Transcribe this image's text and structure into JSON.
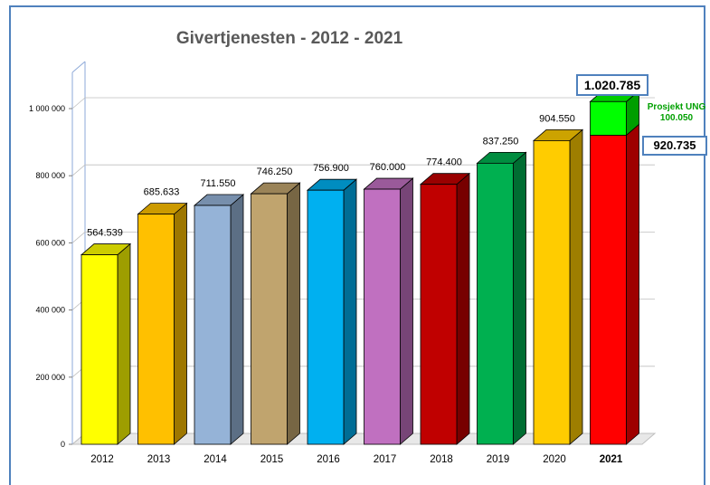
{
  "chart_data": {
    "type": "bar",
    "title": "Givertjenesten -  2012 - 2021",
    "xlabel": "",
    "ylabel": "",
    "ylim": [
      0,
      1000000
    ],
    "yticks": [
      "0",
      "200 000",
      "400 000",
      "600 000",
      "800 000",
      "1 000 000"
    ],
    "categories": [
      "2012",
      "2013",
      "2014",
      "2015",
      "2016",
      "2017",
      "2018",
      "2019",
      "2020",
      "2021"
    ],
    "values": [
      564539,
      685633,
      711550,
      746250,
      756900,
      760000,
      774400,
      837250,
      904550,
      920735
    ],
    "value_labels": [
      "564.539",
      "685.633",
      "711.550",
      "746.250",
      "756.900",
      "760.000",
      "774.400",
      "837.250",
      "904.550",
      "920.735"
    ],
    "colors": [
      "#ffff00",
      "#ffc000",
      "#95b3d7",
      "#c0a46e",
      "#00b0f0",
      "#c070c0",
      "#c00000",
      "#00b050",
      "#ffcc00",
      "#ff0000"
    ],
    "stacked_extra": {
      "category": "2021",
      "value": 100050,
      "label_line1": "Prosjekt UNG",
      "label_line2": "100.050",
      "color": "#00ff00"
    },
    "total_label": "1.020.785",
    "grid": true
  }
}
